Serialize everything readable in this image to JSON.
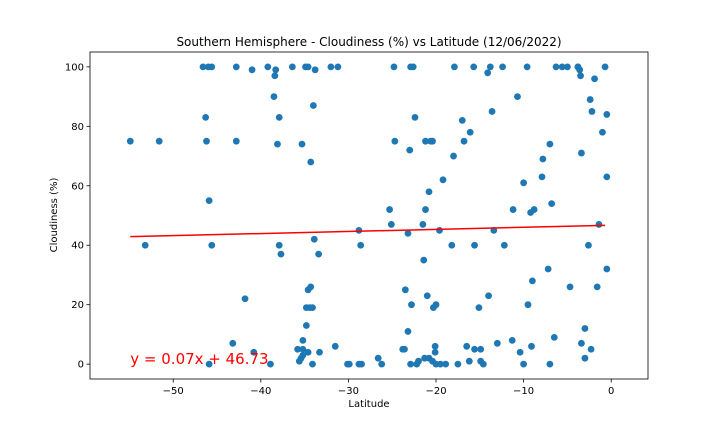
{
  "chart_data": {
    "type": "scatter",
    "title": "Southern Hemisphere - Cloudiness (%) vs Latitude (12/06/2022)",
    "xlabel": "Latitude",
    "ylabel": "Cloudiness (%)",
    "xlim": [
      -59.5,
      4.2
    ],
    "ylim": [
      -5,
      105
    ],
    "xticks": [
      -50,
      -40,
      -30,
      -20,
      -10,
      0
    ],
    "yticks": [
      0,
      20,
      40,
      60,
      80,
      100
    ],
    "xtick_labels": [
      "−50",
      "−40",
      "−30",
      "−20",
      "−10",
      "0"
    ],
    "ytick_labels": [
      "0",
      "20",
      "40",
      "60",
      "80",
      "100"
    ],
    "grid": false,
    "point_color": "#1f77b4",
    "line_color": "#ff0000",
    "annotation": {
      "text": "y = 0.07x + 46.73",
      "x": -54.9,
      "y": 0,
      "color": "#ff0000"
    },
    "regression": {
      "slope": 0.07,
      "intercept": 46.73,
      "x_range": [
        -54.9,
        -0.7
      ]
    },
    "points": [
      [
        -54.9,
        75
      ],
      [
        -53.2,
        40
      ],
      [
        -51.6,
        75
      ],
      [
        -46.6,
        100
      ],
      [
        -46.3,
        83
      ],
      [
        -46.2,
        75
      ],
      [
        -46.0,
        100
      ],
      [
        -45.6,
        100
      ],
      [
        -45.9,
        55
      ],
      [
        -45.6,
        40
      ],
      [
        -45.9,
        0
      ],
      [
        -43.2,
        7
      ],
      [
        -42.8,
        100
      ],
      [
        -42.8,
        75
      ],
      [
        -41.8,
        22
      ],
      [
        -41.0,
        99
      ],
      [
        -40.8,
        4
      ],
      [
        -39.2,
        100
      ],
      [
        -38.9,
        0
      ],
      [
        -38.5,
        90
      ],
      [
        -38.4,
        97
      ],
      [
        -38.3,
        99
      ],
      [
        -38.1,
        74
      ],
      [
        -37.9,
        83
      ],
      [
        -37.9,
        40
      ],
      [
        -37.7,
        37
      ],
      [
        -36.4,
        100
      ],
      [
        -35.8,
        5
      ],
      [
        -35.6,
        1
      ],
      [
        -35.4,
        2
      ],
      [
        -35.3,
        74
      ],
      [
        -35.2,
        3
      ],
      [
        -35.2,
        8
      ],
      [
        -35.2,
        5
      ],
      [
        -34.9,
        100
      ],
      [
        -34.6,
        100
      ],
      [
        -34.8,
        19
      ],
      [
        -34.8,
        13
      ],
      [
        -34.6,
        25
      ],
      [
        -34.6,
        4
      ],
      [
        -34.3,
        26
      ],
      [
        -34.4,
        19
      ],
      [
        -34.1,
        19
      ],
      [
        -34.3,
        68
      ],
      [
        -34.0,
        87
      ],
      [
        -33.9,
        42
      ],
      [
        -33.8,
        99
      ],
      [
        -34.1,
        0
      ],
      [
        -33.4,
        37
      ],
      [
        -33.3,
        4
      ],
      [
        -32.0,
        100
      ],
      [
        -31.2,
        100
      ],
      [
        -31.5,
        6
      ],
      [
        -30.1,
        0
      ],
      [
        -29.9,
        0
      ],
      [
        -28.8,
        45
      ],
      [
        -28.6,
        40
      ],
      [
        -28.8,
        0
      ],
      [
        -28.5,
        0
      ],
      [
        -26.6,
        2
      ],
      [
        -26.2,
        0
      ],
      [
        -25.3,
        52
      ],
      [
        -25.1,
        47
      ],
      [
        -24.8,
        100
      ],
      [
        -24.7,
        75
      ],
      [
        -23.8,
        5
      ],
      [
        -23.6,
        5
      ],
      [
        -23.5,
        25
      ],
      [
        -23.2,
        44
      ],
      [
        -23.2,
        11
      ],
      [
        -23.0,
        72
      ],
      [
        -22.9,
        100
      ],
      [
        -22.8,
        20
      ],
      [
        -22.9,
        0
      ],
      [
        -22.6,
        100
      ],
      [
        -22.4,
        83
      ],
      [
        -22.2,
        0
      ],
      [
        -22.0,
        1
      ],
      [
        -21.5,
        47
      ],
      [
        -21.4,
        35
      ],
      [
        -21.2,
        52
      ],
      [
        -21.2,
        75
      ],
      [
        -21.0,
        23
      ],
      [
        -21.3,
        2
      ],
      [
        -20.8,
        58
      ],
      [
        -20.8,
        2
      ],
      [
        -20.6,
        75
      ],
      [
        -20.4,
        75
      ],
      [
        -20.4,
        1
      ],
      [
        -20.3,
        19
      ],
      [
        -20.1,
        6
      ],
      [
        -20.0,
        20
      ],
      [
        -20.1,
        4
      ],
      [
        -20.0,
        0
      ],
      [
        -19.6,
        45
      ],
      [
        -19.5,
        0
      ],
      [
        -19.2,
        62
      ],
      [
        -18.9,
        0
      ],
      [
        -18.2,
        40
      ],
      [
        -18.0,
        70
      ],
      [
        -17.9,
        100
      ],
      [
        -17.5,
        0
      ],
      [
        -17.0,
        82
      ],
      [
        -16.8,
        75
      ],
      [
        -16.5,
        6
      ],
      [
        -16.1,
        78
      ],
      [
        -16.2,
        1
      ],
      [
        -15.7,
        100
      ],
      [
        -15.6,
        40
      ],
      [
        -15.6,
        5
      ],
      [
        -15.1,
        19
      ],
      [
        -14.9,
        5
      ],
      [
        -14.9,
        1
      ],
      [
        -14.6,
        0
      ],
      [
        -14.1,
        98
      ],
      [
        -14.0,
        23
      ],
      [
        -13.8,
        100
      ],
      [
        -13.6,
        85
      ],
      [
        -13.4,
        45
      ],
      [
        -13.0,
        7
      ],
      [
        -12.4,
        100
      ],
      [
        -12.2,
        40
      ],
      [
        -11.2,
        52
      ],
      [
        -11.3,
        8
      ],
      [
        -10.7,
        90
      ],
      [
        -10.4,
        4
      ],
      [
        -10.0,
        61
      ],
      [
        -10.0,
        0
      ],
      [
        -9.6,
        100
      ],
      [
        -9.5,
        20
      ],
      [
        -9.2,
        51
      ],
      [
        -9.1,
        6
      ],
      [
        -8.8,
        52
      ],
      [
        -9.0,
        28
      ],
      [
        -7.9,
        63
      ],
      [
        -7.8,
        69
      ],
      [
        -7.2,
        32
      ],
      [
        -7.0,
        74
      ],
      [
        -6.8,
        54
      ],
      [
        -6.5,
        9
      ],
      [
        -7.0,
        0
      ],
      [
        -6.3,
        100
      ],
      [
        -5.6,
        100
      ],
      [
        -5.0,
        100
      ],
      [
        -4.7,
        26
      ],
      [
        -3.8,
        100
      ],
      [
        -3.8,
        100
      ],
      [
        -3.6,
        99
      ],
      [
        -3.5,
        97
      ],
      [
        -3.4,
        7
      ],
      [
        -3.4,
        71
      ],
      [
        -3.0,
        12
      ],
      [
        -3.0,
        2
      ],
      [
        -2.6,
        40
      ],
      [
        -2.4,
        89
      ],
      [
        -2.2,
        85
      ],
      [
        -2.3,
        5
      ],
      [
        -1.9,
        96
      ],
      [
        -1.6,
        26
      ],
      [
        -1.4,
        47
      ],
      [
        -1.0,
        78
      ],
      [
        -0.7,
        100
      ],
      [
        -0.5,
        84
      ],
      [
        -0.5,
        63
      ],
      [
        -0.5,
        32
      ]
    ]
  }
}
